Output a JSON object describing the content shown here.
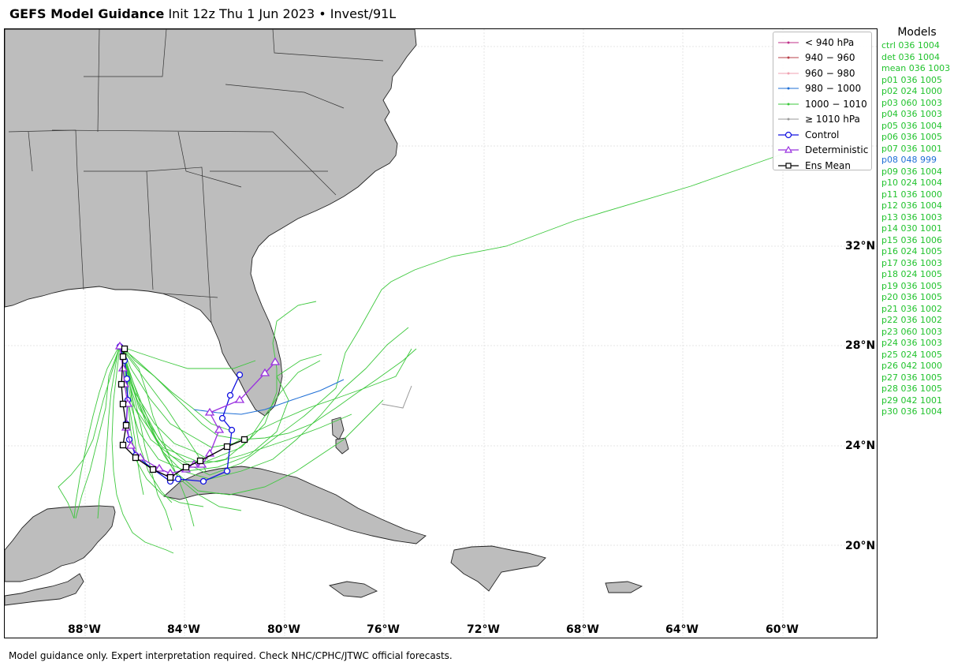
{
  "header": {
    "title": "GEFS Model Guidance",
    "subtitle": "Init 12z Thu 1 Jun 2023 • Invest/91L"
  },
  "map": {
    "lat_labels": [
      "32°N",
      "28°N",
      "24°N",
      "20°N"
    ],
    "lon_labels": [
      "88°W",
      "84°W",
      "80°W",
      "76°W",
      "72°W",
      "68°W",
      "64°W",
      "60°W"
    ],
    "land_color": "#bdbdbd",
    "ocean_color": "#ffffff",
    "grid": true
  },
  "legend": {
    "items": [
      {
        "label": "< 940 hPa",
        "color": "#c0308a",
        "marker": "dot"
      },
      {
        "label": "940 − 960",
        "color": "#b8404a",
        "marker": "dot"
      },
      {
        "label": "960 − 980",
        "color": "#f0a0b0",
        "marker": "dot"
      },
      {
        "label": "980 − 1000",
        "color": "#1f6fd6",
        "marker": "dot"
      },
      {
        "label": "1000 − 1010",
        "color": "#3cc83c",
        "marker": "dot"
      },
      {
        "label": "≥ 1010 hPa",
        "color": "#999999",
        "marker": "dot"
      },
      {
        "label": "Control",
        "color": "#1010e0",
        "marker": "circle"
      },
      {
        "label": "Deterministic",
        "color": "#9a30e0",
        "marker": "triangle"
      },
      {
        "label": "Ens Mean",
        "color": "#000000",
        "marker": "square"
      }
    ]
  },
  "models": {
    "title": "Models",
    "items": [
      {
        "text": "ctrl 036 1004",
        "color": "green"
      },
      {
        "text": "det 036 1004",
        "color": "green"
      },
      {
        "text": "mean 036 1003",
        "color": "green"
      },
      {
        "text": "p01 036 1005",
        "color": "green"
      },
      {
        "text": "p02 024 1000",
        "color": "green"
      },
      {
        "text": "p03 060 1003",
        "color": "green"
      },
      {
        "text": "p04 036 1003",
        "color": "green"
      },
      {
        "text": "p05 036 1004",
        "color": "green"
      },
      {
        "text": "p06 036 1005",
        "color": "green"
      },
      {
        "text": "p07 036 1001",
        "color": "green"
      },
      {
        "text": "p08 048 999",
        "color": "blue"
      },
      {
        "text": "p09 036 1004",
        "color": "green"
      },
      {
        "text": "p10 024 1004",
        "color": "green"
      },
      {
        "text": "p11 036 1000",
        "color": "green"
      },
      {
        "text": "p12 036 1004",
        "color": "green"
      },
      {
        "text": "p13 036 1003",
        "color": "green"
      },
      {
        "text": "p14 030 1001",
        "color": "green"
      },
      {
        "text": "p15 036 1006",
        "color": "green"
      },
      {
        "text": "p16 024 1005",
        "color": "green"
      },
      {
        "text": "p17 036 1003",
        "color": "green"
      },
      {
        "text": "p18 024 1005",
        "color": "green"
      },
      {
        "text": "p19 036 1005",
        "color": "green"
      },
      {
        "text": "p20 036 1005",
        "color": "green"
      },
      {
        "text": "p21 036 1002",
        "color": "green"
      },
      {
        "text": "p22 036 1002",
        "color": "green"
      },
      {
        "text": "p23 060 1003",
        "color": "green"
      },
      {
        "text": "p24 036 1003",
        "color": "green"
      },
      {
        "text": "p25 024 1005",
        "color": "green"
      },
      {
        "text": "p26 042 1000",
        "color": "green"
      },
      {
        "text": "p27 036 1005",
        "color": "green"
      },
      {
        "text": "p28 036 1005",
        "color": "green"
      },
      {
        "text": "p29 042 1001",
        "color": "green"
      },
      {
        "text": "p30 036 1004",
        "color": "green"
      }
    ]
  },
  "footer": {
    "text": "Model guidance only. Expert interpretation required. Check NHC/CPHC/JTWC official forecasts."
  }
}
